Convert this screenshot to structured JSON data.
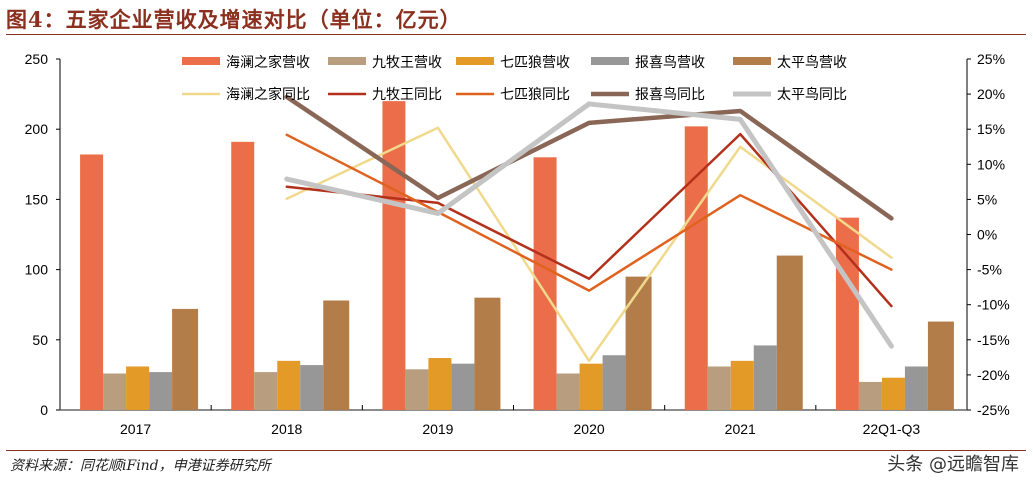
{
  "title": "图4：五家企业营收及增速对比（单位：亿元）",
  "source": "资料来源：同花顺iFind，申港证券研究所",
  "watermark": "头条 @远瞻智库",
  "chart_data": {
    "type": "bar+line",
    "categories": [
      "2017",
      "2018",
      "2019",
      "2020",
      "2021",
      "22Q1-Q3"
    ],
    "y_left": {
      "range": [
        0,
        250
      ],
      "ticks": [
        "0",
        "50",
        "100",
        "150",
        "200",
        "250"
      ]
    },
    "y_right": {
      "range": [
        -25,
        25
      ],
      "ticks": [
        "-25%",
        "-20%",
        "-15%",
        "-10%",
        "-5%",
        "0%",
        "5%",
        "10%",
        "15%",
        "20%",
        "25%"
      ]
    },
    "legend_placement": "top",
    "bar_series": [
      {
        "name": "海澜之家营收",
        "color": "#ec6d4a",
        "values": [
          182,
          191,
          220,
          180,
          202,
          137
        ]
      },
      {
        "name": "九牧王营收",
        "color": "#b89e7e",
        "values": [
          26,
          27,
          29,
          26,
          31,
          20
        ]
      },
      {
        "name": "七匹狼营收",
        "color": "#e39a26",
        "values": [
          31,
          35,
          37,
          33,
          35,
          23
        ]
      },
      {
        "name": "报喜鸟营收",
        "color": "#979797",
        "values": [
          27,
          32,
          33,
          39,
          46,
          31
        ]
      },
      {
        "name": "太平鸟营收",
        "color": "#b37d4a",
        "values": [
          72,
          78,
          80,
          95,
          110,
          63
        ]
      }
    ],
    "line_series": [
      {
        "name": "海澜之家同比",
        "color": "#f0d98c",
        "width": 2.5,
        "values": [
          null,
          5.1,
          15.2,
          -18.0,
          12.5,
          -3.3
        ]
      },
      {
        "name": "九牧王同比",
        "color": "#b3311b",
        "width": 2.5,
        "values": [
          null,
          6.8,
          4.5,
          -6.3,
          14.3,
          -10.2
        ]
      },
      {
        "name": "七匹狼同比",
        "color": "#e0621f",
        "width": 2.5,
        "values": [
          null,
          14.2,
          3.2,
          -8.0,
          5.6,
          -5.0
        ]
      },
      {
        "name": "报喜鸟同比",
        "color": "#8a6656",
        "width": 4.5,
        "values": [
          null,
          19.6,
          5.2,
          15.9,
          17.6,
          2.3
        ]
      },
      {
        "name": "太平鸟同比",
        "color": "#c4c4c4",
        "width": 5,
        "values": [
          null,
          7.9,
          3.0,
          18.6,
          16.4,
          -15.9
        ]
      }
    ]
  }
}
